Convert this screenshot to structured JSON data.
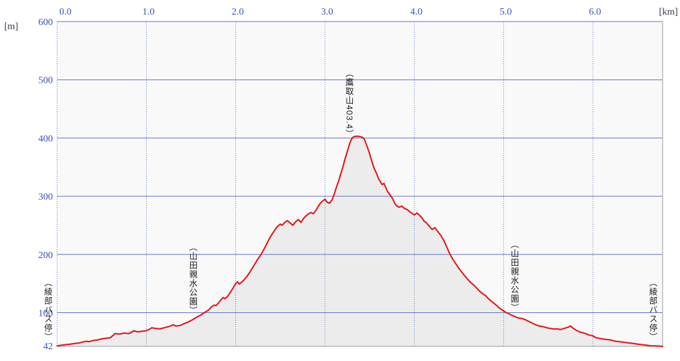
{
  "chart_data": {
    "type": "area",
    "title": "",
    "x_unit_label": "[km]",
    "y_unit_label": "[m]",
    "x_ticks": [
      "0.0",
      "1.0",
      "2.0",
      "3.0",
      "4.0",
      "5.0",
      "6.0"
    ],
    "x_tick_km": [
      0,
      1,
      2,
      3,
      4,
      5,
      6
    ],
    "y_ticks": [
      600,
      500,
      400,
      300,
      200,
      100
    ],
    "y_bottom_label": "42",
    "x_range_km": [
      0,
      6.78
    ],
    "y_range_m": [
      42,
      600
    ],
    "grid": "on",
    "legend": "none",
    "colors": {
      "line": "#e81212",
      "fill_under_curve": "#ececec",
      "plot_background": "#f9f9f9",
      "grid_blue": "#6577cc",
      "tick_label_blue": "#3850c0",
      "unit_label": "#3a3a52",
      "border_gray": "#9aa0a0",
      "annotation_text": "#1a1a1a"
    },
    "annotations": [
      {
        "id": "start-bus-stop",
        "label": "（綾部バス停）",
        "km": 0.0,
        "dx": -12
      },
      {
        "id": "yamada-park-1",
        "label": "（山田親水公園）",
        "km": 1.53,
        "dx": 0
      },
      {
        "id": "takatori-peak",
        "label": "（鷹取山403.4）",
        "km": 3.28,
        "dx": 0
      },
      {
        "id": "yamada-park-2",
        "label": "（山田親水公園）",
        "km": 5.13,
        "dx": 0
      },
      {
        "id": "end-bus-stop",
        "label": "（綾部バス停）",
        "km": 6.72,
        "dx": -5
      }
    ],
    "peak_elevation_m": 403.4,
    "profile_km_elev": [
      [
        0.0,
        43
      ],
      [
        0.05,
        44
      ],
      [
        0.1,
        45
      ],
      [
        0.15,
        46
      ],
      [
        0.2,
        47
      ],
      [
        0.25,
        48
      ],
      [
        0.3,
        50
      ],
      [
        0.33,
        51
      ],
      [
        0.36,
        50
      ],
      [
        0.4,
        52
      ],
      [
        0.45,
        53
      ],
      [
        0.5,
        55
      ],
      [
        0.55,
        56
      ],
      [
        0.6,
        57
      ],
      [
        0.62,
        60
      ],
      [
        0.65,
        64
      ],
      [
        0.7,
        63
      ],
      [
        0.75,
        65
      ],
      [
        0.8,
        64
      ],
      [
        0.83,
        66
      ],
      [
        0.86,
        69
      ],
      [
        0.9,
        67
      ],
      [
        0.95,
        68
      ],
      [
        1.0,
        69
      ],
      [
        1.03,
        71
      ],
      [
        1.06,
        74
      ],
      [
        1.1,
        73
      ],
      [
        1.15,
        72
      ],
      [
        1.2,
        74
      ],
      [
        1.25,
        76
      ],
      [
        1.3,
        79
      ],
      [
        1.33,
        77
      ],
      [
        1.38,
        78
      ],
      [
        1.42,
        81
      ],
      [
        1.47,
        84
      ],
      [
        1.52,
        88
      ],
      [
        1.56,
        92
      ],
      [
        1.6,
        95
      ],
      [
        1.65,
        100
      ],
      [
        1.7,
        105
      ],
      [
        1.73,
        110
      ],
      [
        1.76,
        113
      ],
      [
        1.78,
        112
      ],
      [
        1.81,
        117
      ],
      [
        1.84,
        123
      ],
      [
        1.86,
        126
      ],
      [
        1.88,
        124
      ],
      [
        1.91,
        128
      ],
      [
        1.94,
        135
      ],
      [
        1.97,
        142
      ],
      [
        2.0,
        150
      ],
      [
        2.02,
        153
      ],
      [
        2.04,
        149
      ],
      [
        2.08,
        154
      ],
      [
        2.12,
        161
      ],
      [
        2.16,
        170
      ],
      [
        2.2,
        180
      ],
      [
        2.24,
        190
      ],
      [
        2.28,
        199
      ],
      [
        2.31,
        207
      ],
      [
        2.34,
        216
      ],
      [
        2.37,
        225
      ],
      [
        2.4,
        233
      ],
      [
        2.43,
        240
      ],
      [
        2.46,
        247
      ],
      [
        2.5,
        252
      ],
      [
        2.52,
        250
      ],
      [
        2.55,
        255
      ],
      [
        2.58,
        258
      ],
      [
        2.61,
        254
      ],
      [
        2.64,
        250
      ],
      [
        2.67,
        256
      ],
      [
        2.7,
        260
      ],
      [
        2.73,
        255
      ],
      [
        2.76,
        262
      ],
      [
        2.8,
        268
      ],
      [
        2.84,
        272
      ],
      [
        2.87,
        270
      ],
      [
        2.9,
        276
      ],
      [
        2.93,
        284
      ],
      [
        2.96,
        290
      ],
      [
        3.0,
        295
      ],
      [
        3.02,
        290
      ],
      [
        3.05,
        288
      ],
      [
        3.08,
        294
      ],
      [
        3.1,
        302
      ],
      [
        3.12,
        312
      ],
      [
        3.15,
        325
      ],
      [
        3.17,
        335
      ],
      [
        3.2,
        350
      ],
      [
        3.22,
        362
      ],
      [
        3.24,
        372
      ],
      [
        3.26,
        382
      ],
      [
        3.28,
        392
      ],
      [
        3.3,
        399
      ],
      [
        3.32,
        402
      ],
      [
        3.35,
        403
      ],
      [
        3.38,
        403
      ],
      [
        3.4,
        402
      ],
      [
        3.42,
        401
      ],
      [
        3.44,
        398
      ],
      [
        3.46,
        390
      ],
      [
        3.48,
        382
      ],
      [
        3.5,
        373
      ],
      [
        3.52,
        362
      ],
      [
        3.55,
        348
      ],
      [
        3.58,
        338
      ],
      [
        3.6,
        330
      ],
      [
        3.62,
        325
      ],
      [
        3.64,
        320
      ],
      [
        3.66,
        322
      ],
      [
        3.68,
        315
      ],
      [
        3.7,
        308
      ],
      [
        3.73,
        302
      ],
      [
        3.76,
        295
      ],
      [
        3.78,
        288
      ],
      [
        3.8,
        284
      ],
      [
        3.83,
        281
      ],
      [
        3.86,
        283
      ],
      [
        3.89,
        279
      ],
      [
        3.92,
        277
      ],
      [
        3.95,
        273
      ],
      [
        3.98,
        270
      ],
      [
        4.0,
        268
      ],
      [
        4.03,
        271
      ],
      [
        4.06,
        267
      ],
      [
        4.09,
        262
      ],
      [
        4.11,
        257
      ],
      [
        4.13,
        255
      ],
      [
        4.16,
        250
      ],
      [
        4.18,
        246
      ],
      [
        4.2,
        243
      ],
      [
        4.23,
        246
      ],
      [
        4.26,
        240
      ],
      [
        4.3,
        232
      ],
      [
        4.33,
        224
      ],
      [
        4.36,
        214
      ],
      [
        4.4,
        200
      ],
      [
        4.43,
        192
      ],
      [
        4.46,
        185
      ],
      [
        4.5,
        176
      ],
      [
        4.53,
        170
      ],
      [
        4.56,
        164
      ],
      [
        4.6,
        157
      ],
      [
        4.63,
        152
      ],
      [
        4.66,
        148
      ],
      [
        4.7,
        142
      ],
      [
        4.73,
        137
      ],
      [
        4.76,
        133
      ],
      [
        4.8,
        129
      ],
      [
        4.83,
        124
      ],
      [
        4.86,
        120
      ],
      [
        4.9,
        115
      ],
      [
        4.93,
        111
      ],
      [
        4.96,
        107
      ],
      [
        5.0,
        103
      ],
      [
        5.03,
        100
      ],
      [
        5.06,
        98
      ],
      [
        5.1,
        95
      ],
      [
        5.13,
        93
      ],
      [
        5.16,
        91
      ],
      [
        5.2,
        90
      ],
      [
        5.24,
        88
      ],
      [
        5.28,
        85
      ],
      [
        5.32,
        82
      ],
      [
        5.36,
        79
      ],
      [
        5.4,
        77
      ],
      [
        5.44,
        76
      ],
      [
        5.48,
        74
      ],
      [
        5.52,
        73
      ],
      [
        5.56,
        72
      ],
      [
        5.6,
        72
      ],
      [
        5.64,
        71
      ],
      [
        5.68,
        73
      ],
      [
        5.72,
        75
      ],
      [
        5.75,
        77
      ],
      [
        5.78,
        73
      ],
      [
        5.81,
        70
      ],
      [
        5.85,
        67
      ],
      [
        5.9,
        65
      ],
      [
        5.95,
        62
      ],
      [
        6.0,
        60
      ],
      [
        6.03,
        57
      ],
      [
        6.07,
        56
      ],
      [
        6.1,
        55
      ],
      [
        6.15,
        54
      ],
      [
        6.2,
        53
      ],
      [
        6.25,
        51
      ],
      [
        6.3,
        50
      ],
      [
        6.35,
        49
      ],
      [
        6.4,
        48
      ],
      [
        6.45,
        47
      ],
      [
        6.5,
        46
      ],
      [
        6.55,
        45
      ],
      [
        6.6,
        44
      ],
      [
        6.65,
        43
      ],
      [
        6.7,
        43
      ],
      [
        6.78,
        42
      ]
    ]
  }
}
